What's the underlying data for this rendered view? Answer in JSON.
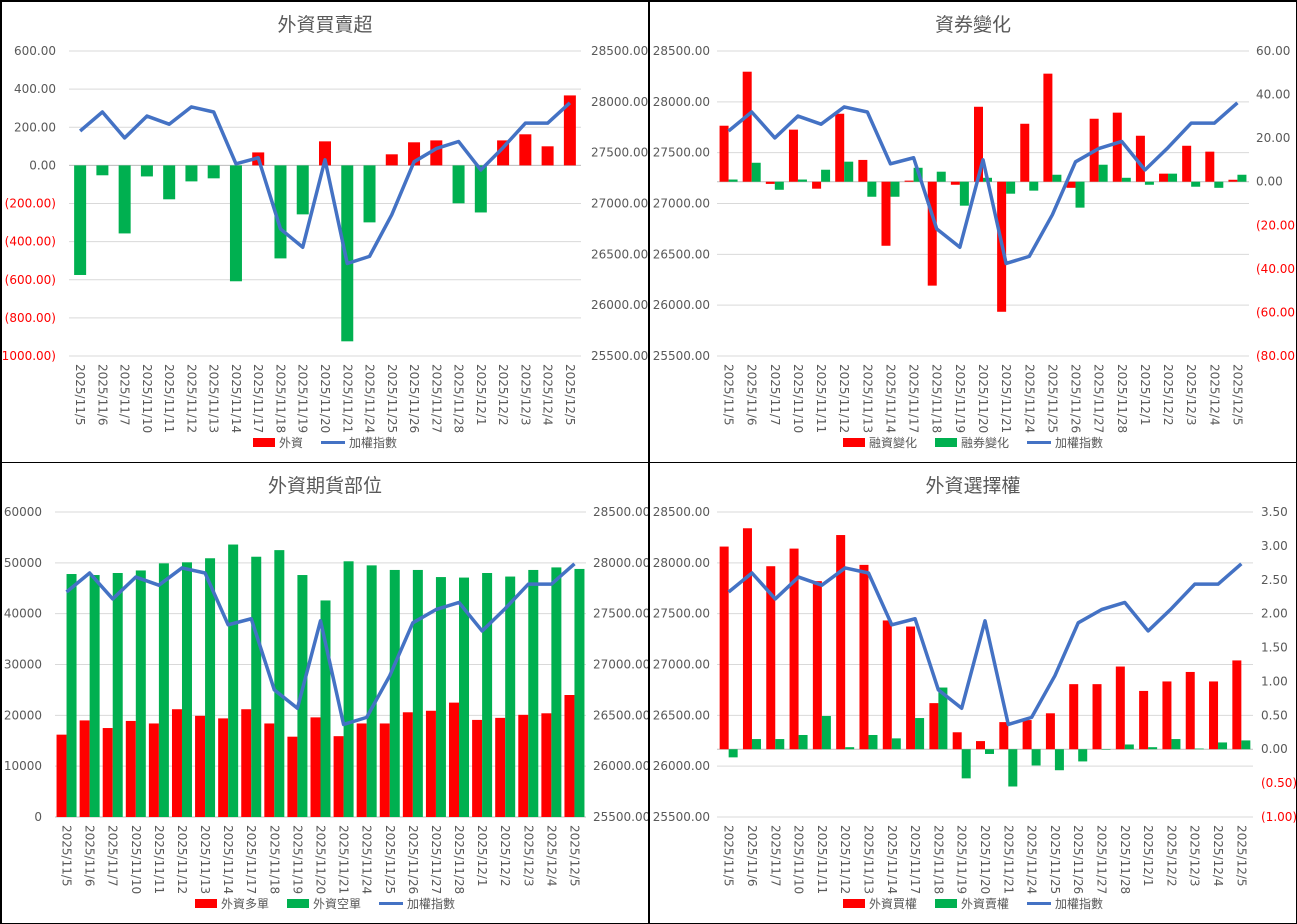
{
  "categories": [
    "2025/11/5",
    "2025/11/6",
    "2025/11/7",
    "2025/11/10",
    "2025/11/11",
    "2025/11/12",
    "2025/11/13",
    "2025/11/14",
    "2025/11/17",
    "2025/11/18",
    "2025/11/19",
    "2025/11/20",
    "2025/11/21",
    "2025/11/24",
    "2025/11/25",
    "2025/11/26",
    "2025/11/27",
    "2025/11/28",
    "2025/12/1",
    "2025/12/2",
    "2025/12/3",
    "2025/12/4",
    "2025/12/5"
  ],
  "index_name": "加權指數",
  "index_values": [
    27713,
    27900,
    27645,
    27860,
    27780,
    27950,
    27900,
    27390,
    27450,
    26750,
    26570,
    27430,
    26410,
    26480,
    26890,
    27410,
    27540,
    27610,
    27330,
    27550,
    27790,
    27790,
    27990
  ],
  "colors": {
    "red": "#FF0000",
    "green": "#00B050",
    "blue": "#4472C4"
  },
  "chart_data": [
    {
      "type": "bar+line",
      "title": "外資買賣超",
      "left_axis": {
        "range": [
          -1000,
          600
        ],
        "ticks": [
          600,
          400,
          200,
          0,
          -200,
          -400,
          -600,
          -800,
          -1000
        ],
        "labels": [
          "600.00",
          "400.00",
          "200.00",
          "0.00",
          "(200.00)",
          "(400.00)",
          "(600.00)",
          "(800.00)",
          "(1000.00)"
        ]
      },
      "right_axis": {
        "range": [
          25500,
          28500
        ],
        "ticks": [
          28500,
          28000,
          27500,
          27000,
          26500,
          26000,
          25500
        ],
        "labels": [
          "28500.00",
          "28000.00",
          "27500.00",
          "27000.00",
          "26500.00",
          "26000.00",
          "25500.00"
        ]
      },
      "bar_axis": "left",
      "line_axis": "right",
      "sign_colored": true,
      "series": [
        {
          "name": "外資",
          "color": "#FF0000",
          "values": [
            -575,
            -52,
            -357,
            -58,
            -178,
            -84,
            -68,
            -608,
            68,
            -488,
            -257,
            126,
            -923,
            -299,
            58,
            121,
            131,
            -199,
            -247,
            131,
            163,
            100,
            367
          ]
        }
      ],
      "legend": [
        "外資",
        "加權指數"
      ]
    },
    {
      "type": "bar+line",
      "title": "資券變化",
      "left_axis": {
        "range": [
          25500,
          28500
        ],
        "ticks": [
          28500,
          28000,
          27500,
          27000,
          26500,
          26000,
          25500
        ],
        "labels": [
          "28500.00",
          "28000.00",
          "27500.00",
          "27000.00",
          "26500.00",
          "26000.00",
          "25500.00"
        ]
      },
      "right_axis": {
        "range": [
          -80,
          60
        ],
        "ticks": [
          60,
          40,
          20,
          0,
          -20,
          -40,
          -60,
          -80
        ],
        "labels": [
          "60.00",
          "40.00",
          "20.00",
          "0.00",
          "(20.00)",
          "(40.00)",
          "(60.00)",
          "(80.00)"
        ]
      },
      "bar_axis": "right",
      "line_axis": "left",
      "series": [
        {
          "name": "融資變化",
          "color": "#FF0000",
          "values": [
            25.7,
            50.5,
            -1,
            23.9,
            -3.2,
            31.2,
            10,
            -29.4,
            0.5,
            -47.7,
            -1.4,
            34.4,
            -59.7,
            26.6,
            49.6,
            -2.8,
            28.9,
            31.7,
            21.1,
            3.7,
            16.5,
            13.8,
            0.9
          ]
        },
        {
          "name": "融券變化",
          "color": "#00B050",
          "values": [
            1,
            8.7,
            -3.7,
            1,
            5.5,
            9.2,
            -6.9,
            -6.9,
            6.4,
            4.6,
            -11,
            1.8,
            -5.5,
            -4.1,
            3.2,
            -11.9,
            7.8,
            1.8,
            -1.4,
            3.7,
            -2.3,
            -2.8,
            3.2
          ]
        }
      ],
      "legend": [
        "融資變化",
        "融券變化",
        "加權指數"
      ]
    },
    {
      "type": "bar+line",
      "title": "外資期貨部位",
      "left_axis": {
        "range": [
          0,
          60000
        ],
        "ticks": [
          60000,
          50000,
          40000,
          30000,
          20000,
          10000,
          0
        ],
        "labels": [
          "60000",
          "50000",
          "40000",
          "30000",
          "20000",
          "10000",
          "0"
        ]
      },
      "right_axis": {
        "range": [
          25500,
          28500
        ],
        "ticks": [
          28500,
          28000,
          27500,
          27000,
          26500,
          26000,
          25500
        ],
        "labels": [
          "28500.00",
          "28000.00",
          "27500.00",
          "27000.00",
          "26500.00",
          "26000.00",
          "25500.00"
        ]
      },
      "bar_axis": "left",
      "line_axis": "right",
      "series": [
        {
          "name": "外資多單",
          "color": "#FF0000",
          "values": [
            16200,
            19000,
            17500,
            18900,
            18400,
            21200,
            19900,
            19400,
            21200,
            18400,
            15800,
            19600,
            15900,
            18400,
            18400,
            20600,
            20900,
            22500,
            19100,
            19500,
            20100,
            20400,
            24000
          ]
        },
        {
          "name": "外資空單",
          "color": "#00B050",
          "values": [
            47800,
            47600,
            48000,
            48500,
            49900,
            50100,
            50900,
            53600,
            51200,
            52500,
            47600,
            42600,
            50300,
            49500,
            48600,
            48600,
            47200,
            47100,
            48000,
            47300,
            48600,
            49100,
            48800
          ]
        }
      ],
      "legend": [
        "外資多單",
        "外資空單",
        "加權指數"
      ]
    },
    {
      "type": "bar+line",
      "title": "外資選擇權",
      "left_axis": {
        "range": [
          25500,
          28500
        ],
        "ticks": [
          28500,
          28000,
          27500,
          27000,
          26500,
          26000,
          25500
        ],
        "labels": [
          "28500.00",
          "28000.00",
          "27500.00",
          "27000.00",
          "26500.00",
          "26000.00",
          "25500.00"
        ]
      },
      "right_axis": {
        "range": [
          -1,
          3.5
        ],
        "ticks": [
          3.5,
          3,
          2.5,
          2,
          1.5,
          1,
          0.5,
          0,
          -0.5,
          -1
        ],
        "labels": [
          "3.50",
          "3.00",
          "2.50",
          "2.00",
          "1.50",
          "1.00",
          "0.50",
          "0.00",
          "(0.50)",
          "(1.00)"
        ]
      },
      "bar_axis": "right",
      "line_axis": "left",
      "series": [
        {
          "name": "外資買權",
          "color": "#FF0000",
          "values": [
            2.99,
            3.26,
            2.7,
            2.96,
            2.48,
            3.16,
            2.72,
            1.9,
            1.81,
            0.68,
            0.25,
            0.12,
            0.4,
            0.43,
            0.53,
            0.96,
            0.96,
            1.22,
            0.86,
            1.0,
            1.14,
            1.0,
            1.31
          ]
        },
        {
          "name": "外資賣權",
          "color": "#00B050",
          "values": [
            -0.12,
            0.15,
            0.15,
            0.21,
            0.49,
            0.03,
            0.21,
            0.16,
            0.46,
            0.91,
            -0.43,
            -0.07,
            -0.55,
            -0.24,
            -0.31,
            -0.18,
            0,
            0.07,
            0.03,
            0.15,
            0.01,
            0.1,
            0.13
          ]
        }
      ],
      "legend": [
        "外資買權",
        "外資賣權",
        "加權指數"
      ]
    }
  ]
}
